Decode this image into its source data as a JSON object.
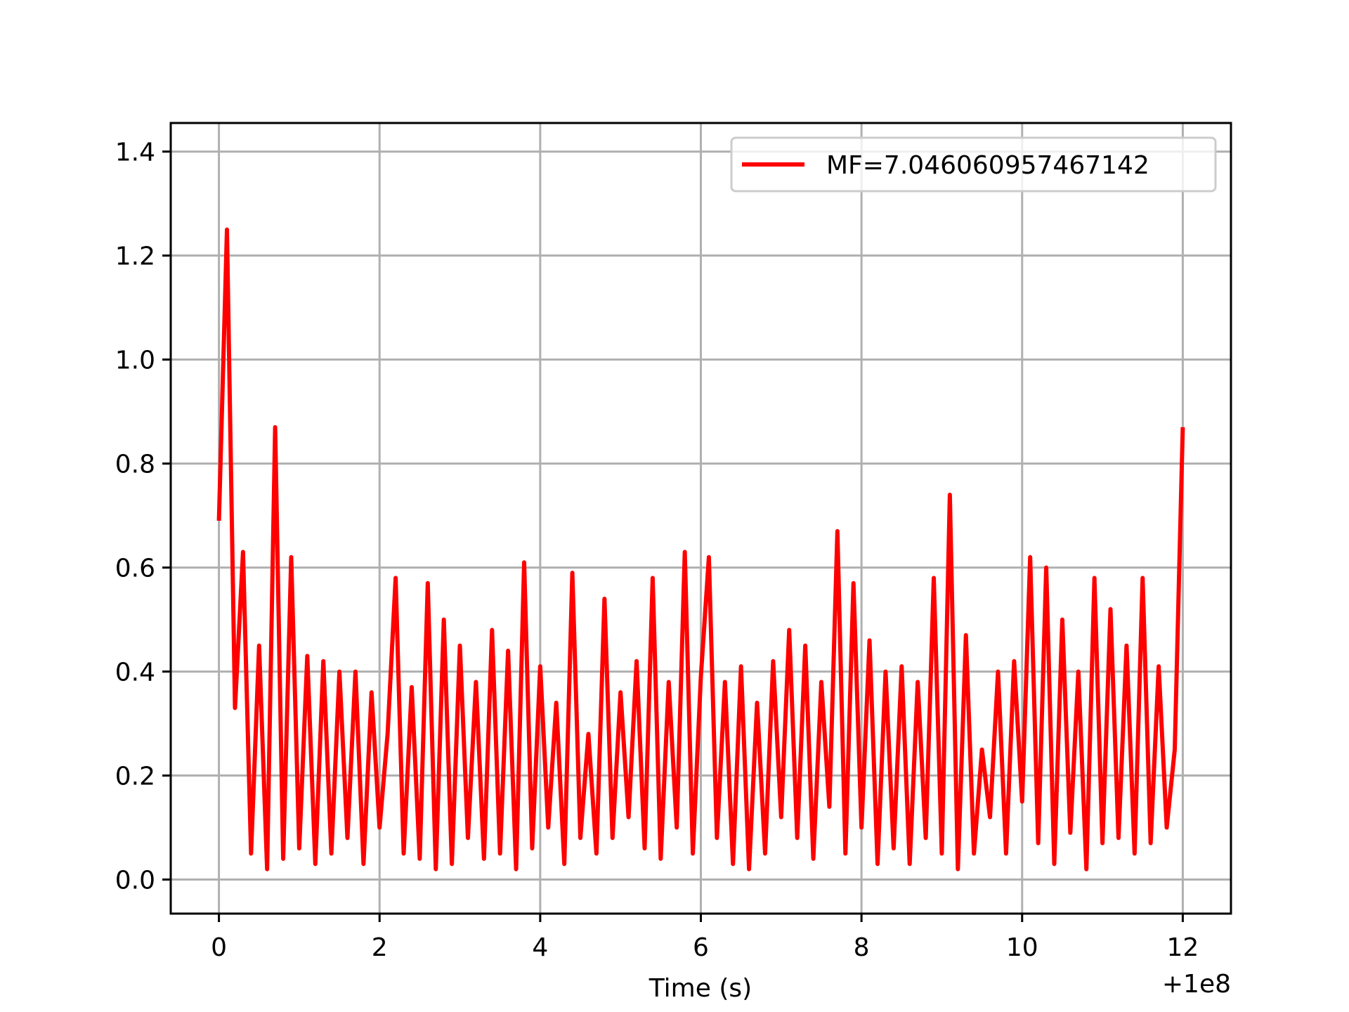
{
  "chart_data": {
    "type": "line",
    "xlabel": "Time (s)",
    "x_offset_label": "+1e8",
    "x": [
      0,
      0.1,
      0.2,
      0.3,
      0.4,
      0.5,
      0.6,
      0.7,
      0.8,
      0.9,
      1.0,
      1.1,
      1.2,
      1.3,
      1.4,
      1.5,
      1.6,
      1.7,
      1.8,
      1.9,
      2.0,
      2.1,
      2.2,
      2.3,
      2.4,
      2.5,
      2.6,
      2.7,
      2.8,
      2.9,
      3.0,
      3.1,
      3.2,
      3.3,
      3.4,
      3.5,
      3.6,
      3.7,
      3.8,
      3.9,
      4.0,
      4.1,
      4.2,
      4.3,
      4.4,
      4.5,
      4.6,
      4.7,
      4.8,
      4.9,
      5.0,
      5.1,
      5.2,
      5.3,
      5.4,
      5.5,
      5.6,
      5.7,
      5.8,
      5.9,
      6.0,
      6.1,
      6.2,
      6.3,
      6.4,
      6.5,
      6.6,
      6.7,
      6.8,
      6.9,
      7.0,
      7.1,
      7.2,
      7.3,
      7.4,
      7.5,
      7.6,
      7.7,
      7.8,
      7.9,
      8.0,
      8.1,
      8.2,
      8.3,
      8.4,
      8.5,
      8.6,
      8.7,
      8.8,
      8.9,
      9.0,
      9.1,
      9.2,
      9.3,
      9.4,
      9.5,
      9.6,
      9.7,
      9.8,
      9.9,
      10.0,
      10.1,
      10.2,
      10.3,
      10.4,
      10.5,
      10.6,
      10.7,
      10.8,
      10.9,
      11.0,
      11.1,
      11.2,
      11.3,
      11.4,
      11.5,
      11.6,
      11.7,
      11.8,
      11.9,
      12.0
    ],
    "series": [
      {
        "name": "MF=7.046060957467142",
        "color": "#ff0000",
        "values": [
          0.69,
          1.25,
          0.33,
          0.63,
          0.05,
          0.45,
          0.02,
          0.87,
          0.04,
          0.62,
          0.06,
          0.43,
          0.03,
          0.42,
          0.05,
          0.4,
          0.08,
          0.4,
          0.03,
          0.36,
          0.1,
          0.28,
          0.58,
          0.05,
          0.37,
          0.04,
          0.57,
          0.02,
          0.5,
          0.03,
          0.45,
          0.08,
          0.38,
          0.04,
          0.48,
          0.05,
          0.44,
          0.02,
          0.61,
          0.06,
          0.41,
          0.1,
          0.34,
          0.03,
          0.59,
          0.08,
          0.28,
          0.05,
          0.54,
          0.08,
          0.36,
          0.12,
          0.42,
          0.06,
          0.58,
          0.04,
          0.38,
          0.1,
          0.63,
          0.05,
          0.39,
          0.62,
          0.08,
          0.38,
          0.03,
          0.41,
          0.02,
          0.34,
          0.05,
          0.42,
          0.12,
          0.48,
          0.08,
          0.45,
          0.04,
          0.38,
          0.14,
          0.67,
          0.05,
          0.57,
          0.1,
          0.46,
          0.03,
          0.4,
          0.06,
          0.41,
          0.03,
          0.38,
          0.08,
          0.58,
          0.05,
          0.74,
          0.02,
          0.47,
          0.05,
          0.25,
          0.12,
          0.4,
          0.05,
          0.42,
          0.15,
          0.62,
          0.07,
          0.6,
          0.03,
          0.5,
          0.09,
          0.4,
          0.02,
          0.58,
          0.07,
          0.52,
          0.08,
          0.45,
          0.05,
          0.58,
          0.07,
          0.41,
          0.1,
          0.25,
          0.87
        ]
      }
    ],
    "xlim": [
      -0.6,
      12.6
    ],
    "ylim": [
      -0.0655,
      1.455
    ],
    "xticks": [
      0,
      2,
      4,
      6,
      8,
      10,
      12
    ],
    "yticks": [
      {
        "value": 0,
        "label": "0.0"
      },
      0.2,
      0.4,
      0.6,
      0.8,
      {
        "value": 1,
        "label": "1.0"
      },
      1.2,
      1.4
    ],
    "grid": true,
    "legend": "upper right"
  }
}
